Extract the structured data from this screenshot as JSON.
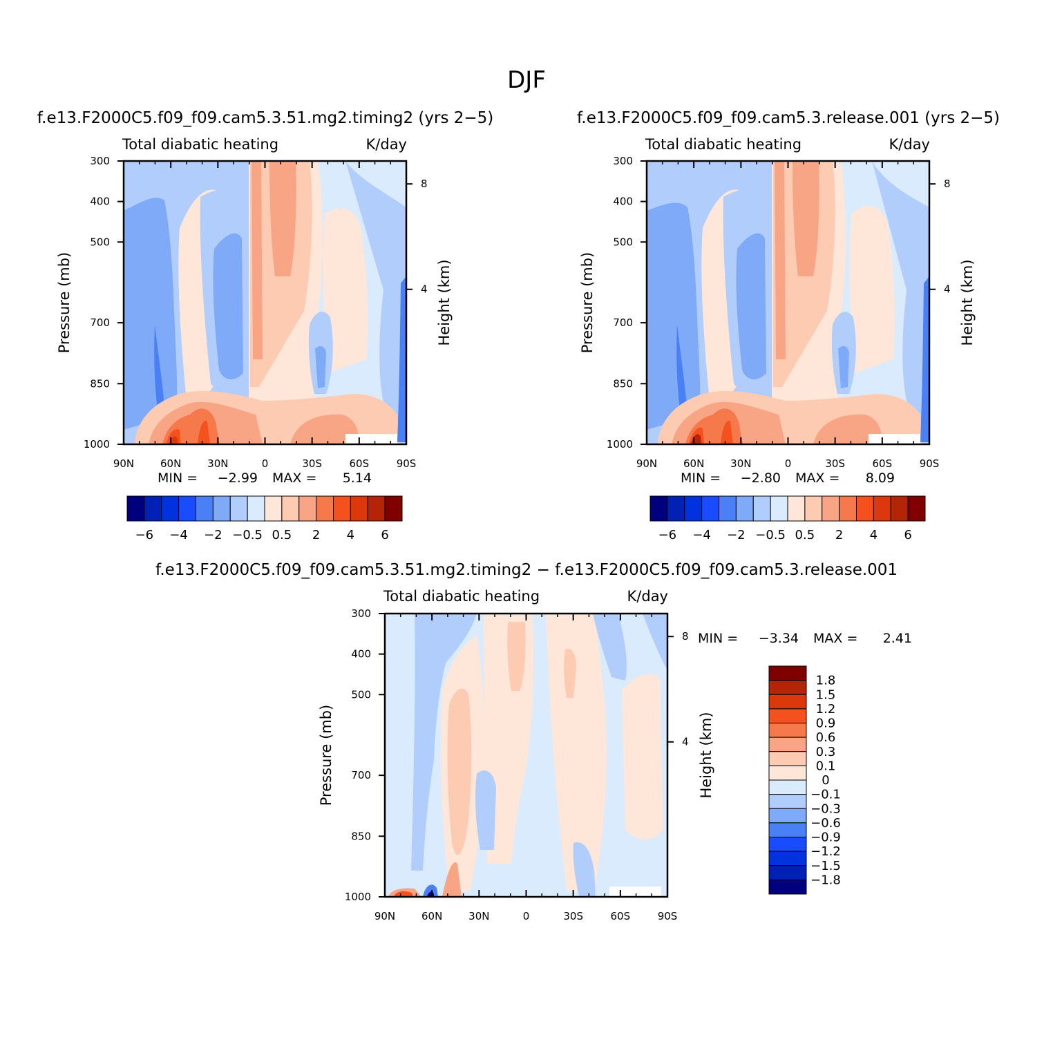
{
  "figure_title": "DJF",
  "chart_data": [
    {
      "type": "heatmap",
      "subtitle": "f.e13.F2000C5.f09_f09.cam5.3.51.mg2.timing2 (yrs 2−5)",
      "left_label": "Total diabatic heating",
      "right_label": "K/day",
      "ylabel": "Pressure (mb)",
      "y2label": "Height (km)",
      "xticks": [
        "90N",
        "60N",
        "30N",
        "0",
        "30S",
        "60S",
        "90S"
      ],
      "yticks": [
        "300",
        "400",
        "500",
        "700",
        "850",
        "1000"
      ],
      "y2ticks": [
        "8",
        "4"
      ],
      "min_label": "MIN =",
      "min_value": "−2.99",
      "max_label": "MAX =",
      "max_value": "5.14",
      "colorbar": "abs"
    },
    {
      "type": "heatmap",
      "subtitle": "f.e13.F2000C5.f09_f09.cam5.3.release.001 (yrs 2−5)",
      "left_label": "Total diabatic heating",
      "right_label": "K/day",
      "ylabel": "Pressure (mb)",
      "y2label": "Height (km)",
      "xticks": [
        "90N",
        "60N",
        "30N",
        "0",
        "30S",
        "60S",
        "90S"
      ],
      "yticks": [
        "300",
        "400",
        "500",
        "700",
        "850",
        "1000"
      ],
      "y2ticks": [
        "8",
        "4"
      ],
      "min_label": "MIN =",
      "min_value": "−2.80",
      "max_label": "MAX =",
      "max_value": "8.09",
      "colorbar": "abs"
    },
    {
      "type": "heatmap",
      "subtitle": "f.e13.F2000C5.f09_f09.cam5.3.51.mg2.timing2 − f.e13.F2000C5.f09_f09.cam5.3.release.001",
      "left_label": "Total diabatic heating",
      "right_label": "K/day",
      "ylabel": "Pressure (mb)",
      "y2label": "Height (km)",
      "xticks": [
        "90N",
        "60N",
        "30N",
        "0",
        "30S",
        "60S",
        "90S"
      ],
      "yticks": [
        "300",
        "400",
        "500",
        "700",
        "850",
        "1000"
      ],
      "y2ticks": [
        "8",
        "4"
      ],
      "min_label": "MIN =",
      "min_value": "−3.34",
      "max_label": "MAX =",
      "max_value": "2.41",
      "colorbar": "diff"
    }
  ],
  "colorbars": {
    "abs": {
      "colors": [
        "#00007f",
        "#0021b3",
        "#0033dd",
        "#1a4cff",
        "#4a80f5",
        "#7eaaf8",
        "#b1cdfc",
        "#d9ebfd",
        "#fee7d8",
        "#fdcab2",
        "#f8a585",
        "#f6794c",
        "#f4511e",
        "#dd380c",
        "#b32506",
        "#800000"
      ],
      "labels": [
        "−6",
        "−4",
        "−2",
        "−0.5",
        "0.5",
        "2",
        "4",
        "6"
      ]
    },
    "diff": {
      "colors": [
        "#800000",
        "#b32506",
        "#dd380c",
        "#f4511e",
        "#f6794c",
        "#f8a585",
        "#fdcab2",
        "#fee7d8",
        "#d9ebfd",
        "#b1cdfc",
        "#7eaaf8",
        "#4a80f5",
        "#1a4cff",
        "#0033dd",
        "#0021b3",
        "#00007f"
      ],
      "labels": [
        "1.8",
        "1.5",
        "1.2",
        "0.9",
        "0.6",
        "0.3",
        "0.1",
        "0",
        "−0.1",
        "−0.3",
        "−0.6",
        "−0.9",
        "−1.2",
        "−1.5",
        "−1.8"
      ]
    }
  },
  "field_colors": {
    "blue3": "#4a80f5",
    "blue2": "#7eaaf8",
    "blue1": "#b1cdfc",
    "blue0": "#d9ebfd",
    "red0": "#fee7d8",
    "red1": "#fdcab2",
    "red2": "#f8a585",
    "red3": "#f6794c",
    "red4": "#f4511e",
    "red5": "#dd380c",
    "red6": "#b32506",
    "deep": "#00007f"
  }
}
